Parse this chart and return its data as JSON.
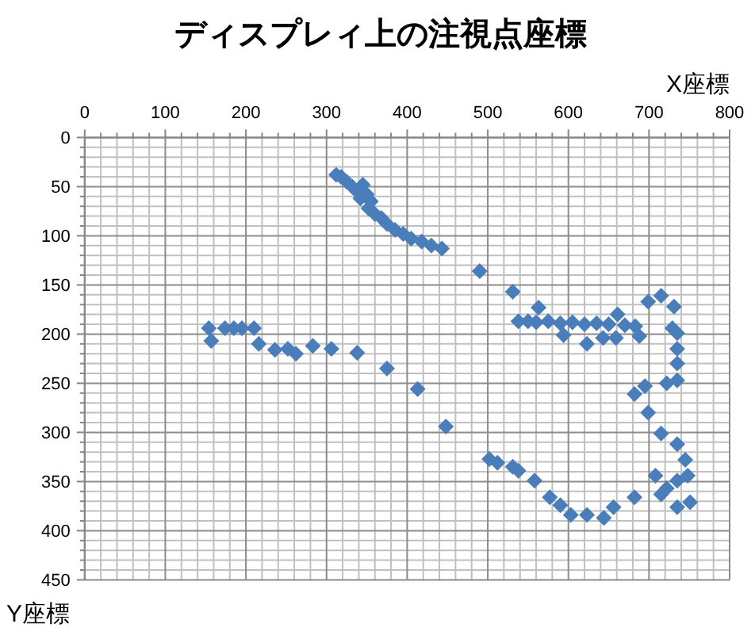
{
  "chart_data": {
    "type": "scatter",
    "title": "ディスプレィ上の注視点座標",
    "xlabel": "X座標",
    "ylabel": "Y座標",
    "xlim": [
      0,
      800
    ],
    "ylim": [
      450,
      0
    ],
    "xticks": [
      0,
      100,
      200,
      300,
      400,
      500,
      600,
      700,
      800
    ],
    "yticks": [
      0,
      50,
      100,
      150,
      200,
      250,
      300,
      350,
      400,
      450
    ],
    "grid": true,
    "marker": "diamond",
    "color": "#4a7ebb",
    "x": [
      312,
      318,
      325,
      332,
      338,
      345,
      342,
      350,
      355,
      352,
      360,
      368,
      375,
      385,
      395,
      405,
      418,
      430,
      443,
      490,
      531,
      563,
      538,
      550,
      560,
      575,
      590,
      594,
      605,
      620,
      623,
      635,
      643,
      650,
      659,
      661,
      670,
      683,
      688,
      699,
      715,
      731,
      729,
      735,
      735,
      735,
      735,
      722,
      682,
      695,
      699,
      715,
      735,
      745,
      748,
      735,
      708,
      722,
      751,
      735,
      715,
      682,
      656,
      644,
      623,
      603,
      590,
      577,
      558,
      538,
      531,
      512,
      502,
      448,
      413,
      375,
      338,
      306,
      283,
      262,
      252,
      236,
      216,
      210,
      195,
      185,
      174,
      157,
      154
    ],
    "values": [
      38,
      40,
      45,
      50,
      55,
      48,
      62,
      58,
      65,
      72,
      78,
      82,
      88,
      94,
      98,
      103,
      106,
      110,
      113,
      136,
      157,
      173,
      187,
      187,
      188,
      187,
      189,
      201,
      188,
      190,
      210,
      189,
      204,
      190,
      204,
      180,
      191,
      192,
      202,
      167,
      161,
      172,
      194,
      199,
      215,
      230,
      247,
      250,
      261,
      253,
      280,
      301,
      312,
      328,
      344,
      349,
      344,
      357,
      371,
      376,
      363,
      366,
      376,
      387,
      384,
      384,
      374,
      366,
      349,
      339,
      335,
      331,
      327,
      294,
      256,
      235,
      219,
      215,
      212,
      220,
      215,
      216,
      210,
      194,
      194,
      194,
      194,
      207,
      194
    ]
  }
}
